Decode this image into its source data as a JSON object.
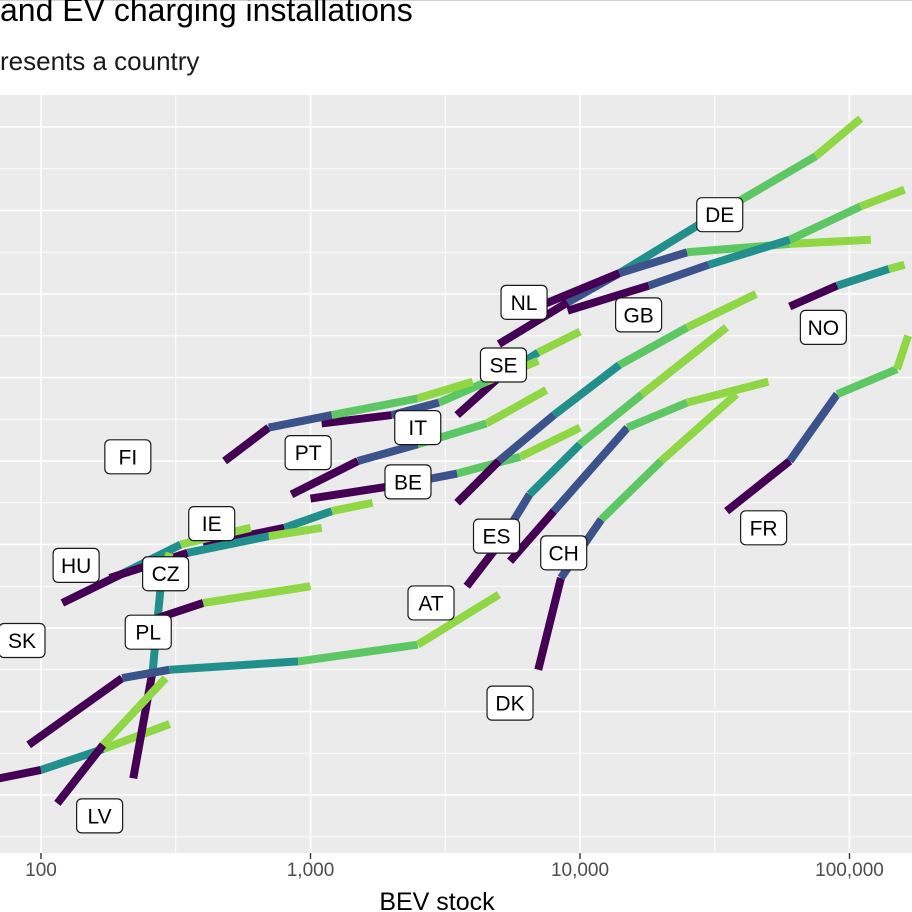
{
  "chart_data": {
    "type": "line",
    "title": "and EV charging installations",
    "subtitle": "resents a country",
    "xlabel": "BEV stock",
    "ylabel": "",
    "x_scale": "log10",
    "xlim": [
      70,
      165000
    ],
    "x_ticks": [
      100,
      1000,
      10000,
      100000
    ],
    "x_tick_labels": [
      "100",
      "1,000",
      "10,000",
      "100,000"
    ],
    "grid": true,
    "legend": "none",
    "colors": [
      "#440154",
      "#3b528b",
      "#21908c",
      "#5dc863",
      "#8fd744"
    ],
    "series": [
      {
        "name": "DE",
        "points": [
          [
            5000,
            7.4
          ],
          [
            9000,
            7.9
          ],
          [
            14000,
            8.25
          ],
          [
            30000,
            8.9
          ],
          [
            75000,
            9.65
          ],
          [
            110000,
            10.1
          ]
        ]
      },
      {
        "name": "NL",
        "points": [
          [
            7000,
            7.85
          ],
          [
            14000,
            8.25
          ],
          [
            25000,
            8.5
          ],
          [
            60000,
            8.6
          ],
          [
            120000,
            8.65
          ]
        ]
      },
      {
        "name": "GB",
        "points": [
          [
            9000,
            7.8
          ],
          [
            18000,
            8.1
          ],
          [
            30000,
            8.35
          ],
          [
            60000,
            8.65
          ],
          [
            110000,
            9.05
          ],
          [
            160000,
            9.25
          ]
        ]
      },
      {
        "name": "NO",
        "points": [
          [
            60000,
            7.85
          ],
          [
            90000,
            8.1
          ],
          [
            140000,
            8.3
          ],
          [
            160000,
            8.35
          ]
        ]
      },
      {
        "name": "SE",
        "points": [
          [
            3500,
            6.55
          ],
          [
            5000,
            7.0
          ],
          [
            7000,
            7.3
          ],
          [
            10000,
            7.55
          ]
        ]
      },
      {
        "name": "IT",
        "points": [
          [
            1100,
            6.45
          ],
          [
            2000,
            6.55
          ],
          [
            3000,
            6.7
          ],
          [
            4500,
            6.95
          ],
          [
            7000,
            7.2
          ]
        ]
      },
      {
        "name": "PT",
        "points": [
          [
            480,
            6.0
          ],
          [
            700,
            6.4
          ],
          [
            1200,
            6.55
          ],
          [
            2500,
            6.75
          ],
          [
            4000,
            6.95
          ]
        ]
      },
      {
        "name": "FI",
        "points": [
          [
            850,
            5.6
          ],
          [
            1500,
            6.0
          ],
          [
            2500,
            6.2
          ],
          [
            4500,
            6.45
          ],
          [
            7500,
            6.85
          ]
        ]
      },
      {
        "name": "BE",
        "points": [
          [
            1000,
            5.55
          ],
          [
            2000,
            5.7
          ],
          [
            3500,
            5.85
          ],
          [
            6000,
            6.05
          ],
          [
            10000,
            6.4
          ]
        ]
      },
      {
        "name": "IE",
        "points": [
          [
            400,
            5.0
          ],
          [
            800,
            5.2
          ],
          [
            1200,
            5.4
          ],
          [
            1700,
            5.5
          ]
        ]
      },
      {
        "name": "HU",
        "points": [
          [
            120,
            4.3
          ],
          [
            200,
            4.65
          ],
          [
            330,
            5.0
          ],
          [
            600,
            5.2
          ]
        ]
      },
      {
        "name": "CZ",
        "points": [
          [
            180,
            4.6
          ],
          [
            350,
            4.9
          ],
          [
            700,
            5.1
          ],
          [
            1100,
            5.2
          ]
        ]
      },
      {
        "name": "SK",
        "points": [
          [
            70,
            2.2
          ],
          [
            100,
            2.3
          ],
          [
            170,
            2.55
          ],
          [
            300,
            2.85
          ]
        ]
      },
      {
        "name": "PL",
        "points": [
          [
            220,
            2.2
          ],
          [
            260,
            3.5
          ],
          [
            280,
            4.6
          ],
          [
            300,
            4.9
          ]
        ]
      },
      {
        "name": "LV",
        "points": [
          [
            115,
            1.9
          ],
          [
            170,
            2.6
          ],
          [
            290,
            3.4
          ]
        ]
      },
      {
        "name": "ES",
        "points": [
          [
            3500,
            5.5
          ],
          [
            5000,
            6.0
          ],
          [
            8000,
            6.55
          ],
          [
            14000,
            7.15
          ],
          [
            25000,
            7.6
          ],
          [
            45000,
            8.0
          ]
        ]
      },
      {
        "name": "AT",
        "points": [
          [
            3800,
            4.5
          ],
          [
            5000,
            5.0
          ],
          [
            6500,
            5.6
          ],
          [
            10000,
            6.2
          ],
          [
            17000,
            6.8
          ],
          [
            35000,
            7.6
          ]
        ]
      },
      {
        "name": "CH",
        "points": [
          [
            5500,
            4.8
          ],
          [
            8000,
            5.4
          ],
          [
            15000,
            6.4
          ],
          [
            25000,
            6.7
          ],
          [
            50000,
            6.95
          ]
        ]
      },
      {
        "name": "DK",
        "points": [
          [
            7000,
            3.5
          ],
          [
            8500,
            4.6
          ],
          [
            12000,
            5.3
          ],
          [
            20000,
            6.0
          ],
          [
            38000,
            6.8
          ]
        ]
      },
      {
        "name": "FR",
        "points": [
          [
            35000,
            5.4
          ],
          [
            60000,
            6.0
          ],
          [
            90000,
            6.8
          ],
          [
            150000,
            7.1
          ],
          [
            165000,
            7.5
          ]
        ]
      },
      {
        "name": "",
        "points": [
          [
            90,
            2.6
          ],
          [
            200,
            3.4
          ],
          [
            300,
            3.5
          ],
          [
            900,
            3.6
          ],
          [
            2500,
            3.8
          ],
          [
            5000,
            4.4
          ]
        ]
      },
      {
        "name": "",
        "points": [
          [
            260,
            4.1
          ],
          [
            400,
            4.3
          ],
          [
            1000,
            4.5
          ]
        ]
      }
    ],
    "labels": [
      {
        "text": "DE",
        "x": 33000,
        "y": 8.95
      },
      {
        "text": "NL",
        "x": 6200,
        "y": 7.9
      },
      {
        "text": "GB",
        "x": 16500,
        "y": 7.75
      },
      {
        "text": "NO",
        "x": 80000,
        "y": 7.6
      },
      {
        "text": "SE",
        "x": 5200,
        "y": 7.15
      },
      {
        "text": "IT",
        "x": 2500,
        "y": 6.4
      },
      {
        "text": "PT",
        "x": 980,
        "y": 6.1
      },
      {
        "text": "FI",
        "x": 210,
        "y": 6.05
      },
      {
        "text": "BE",
        "x": 2300,
        "y": 5.75
      },
      {
        "text": "IE",
        "x": 430,
        "y": 5.25
      },
      {
        "text": "ES",
        "x": 4900,
        "y": 5.1
      },
      {
        "text": "HU",
        "x": 135,
        "y": 4.75
      },
      {
        "text": "CZ",
        "x": 290,
        "y": 4.65
      },
      {
        "text": "CH",
        "x": 8700,
        "y": 4.9
      },
      {
        "text": "FR",
        "x": 48000,
        "y": 5.2
      },
      {
        "text": "AT",
        "x": 2800,
        "y": 4.3
      },
      {
        "text": "PL",
        "x": 250,
        "y": 3.95
      },
      {
        "text": "SK",
        "x": 85,
        "y": 3.85
      },
      {
        "text": "DK",
        "x": 5500,
        "y": 3.1
      },
      {
        "text": "LV",
        "x": 165,
        "y": 1.75
      }
    ]
  }
}
